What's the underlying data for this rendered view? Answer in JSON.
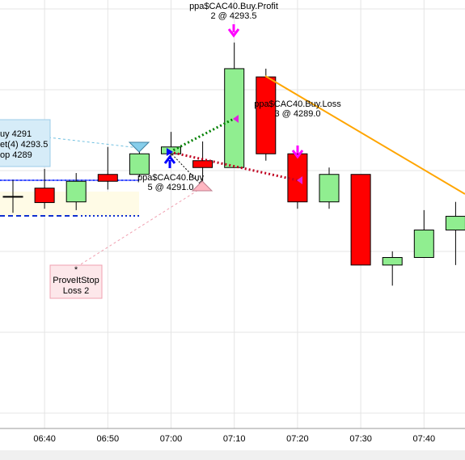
{
  "chart_data": {
    "type": "candlestick",
    "x": [
      null,
      "06:40",
      null,
      "06:50",
      null,
      "07:00",
      null,
      "07:10",
      null,
      "07:20",
      null,
      "07:30",
      null,
      "07:40",
      null
    ],
    "open": [
      4287.8,
      4288.4,
      4287.4,
      4289.4,
      4289.4,
      4290.9,
      4290.4,
      4289.9,
      4296.5,
      4290.9,
      4287.4,
      4289.4,
      4282.8,
      4283.35,
      4285.35
    ],
    "high": [
      4289.0,
      4289.8,
      4289.5,
      4291.4,
      4291.5,
      4292.5,
      4291.8,
      4299.0,
      4297.1,
      4291.5,
      4289.9,
      4289.4,
      4283.8,
      4286.8,
      4287.4
    ],
    "low": [
      4286.6,
      4286.9,
      4286.8,
      4288.3,
      4289.2,
      4290.5,
      4288.6,
      4289.9,
      4290.4,
      4286.9,
      4286.9,
      4282.8,
      4281.3,
      4283.35,
      4282.8
    ],
    "close": [
      4287.8,
      4287.35,
      4288.9,
      4288.9,
      4290.9,
      4291.4,
      4289.9,
      4297.1,
      4290.9,
      4287.4,
      4289.4,
      4282.8,
      4283.35,
      4285.35,
      4286.35
    ],
    "up_color": "#90ee90",
    "down_color": "#ff0000",
    "ylim": [
      4270.9,
      4302.1
    ],
    "annotations": {
      "profit": [
        "ppa$CAC40.Buy.Profit",
        "2 @ 4293.5"
      ],
      "loss": [
        "ppa$CAC40.Buy.Loss",
        "3 @ 4289.0"
      ],
      "entry": [
        "ppa$CAC40.Buy",
        "5 @ 4291.0"
      ],
      "order_box": [
        "uy 4291",
        "et(4) 4293.5",
        "op 4289"
      ],
      "stop_box": [
        "*",
        "ProveItStop",
        "Loss 2"
      ]
    }
  }
}
